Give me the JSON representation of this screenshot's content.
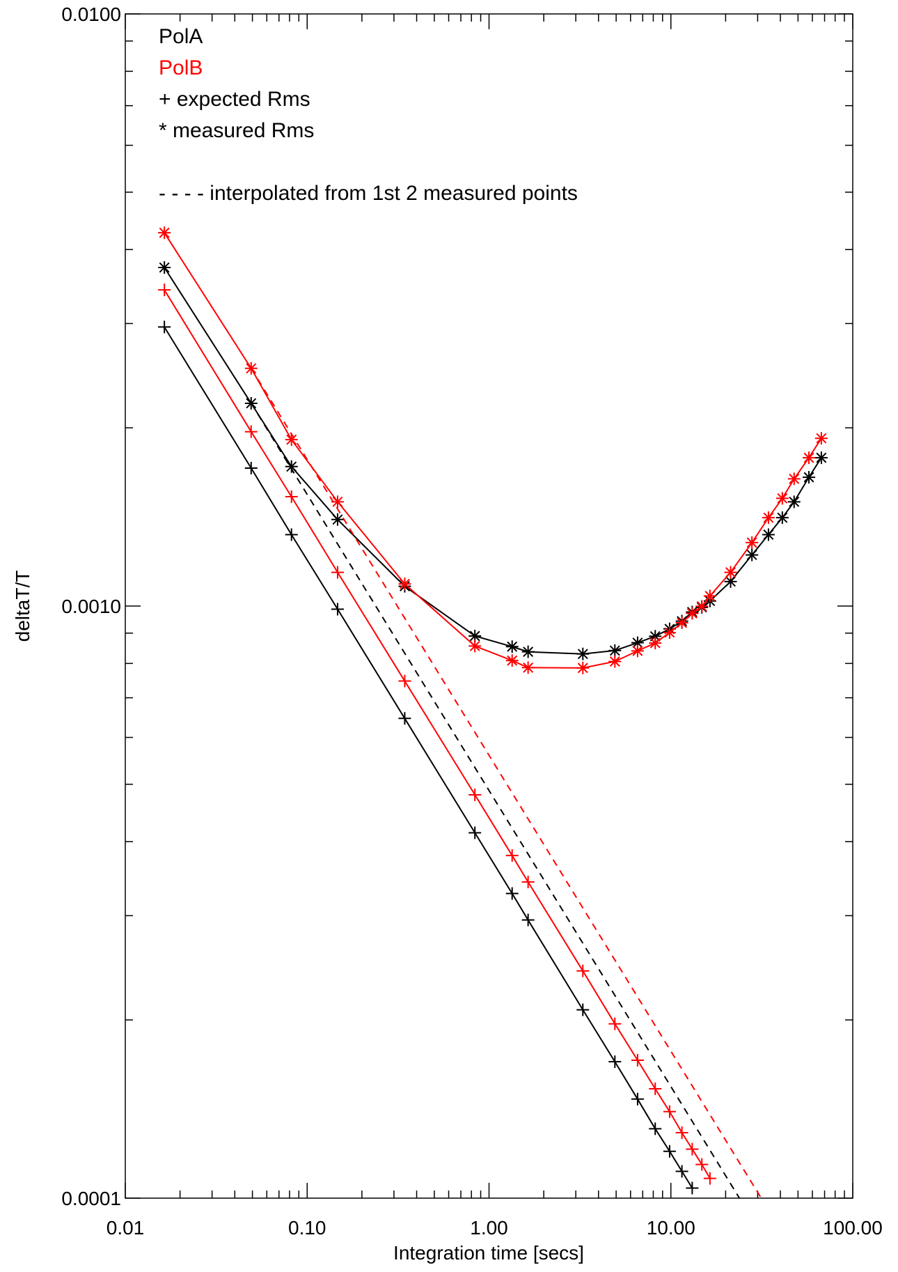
{
  "chart_data": {
    "type": "line",
    "xlabel": "Integration time [secs]",
    "ylabel": "deltaT/T",
    "x_scale": "log",
    "y_scale": "log",
    "xlim": [
      0.01,
      100.0
    ],
    "ylim": [
      0.0001,
      0.01
    ],
    "x_tick_labels": [
      {
        "value": 0.01,
        "label": "0.01"
      },
      {
        "value": 0.1,
        "label": "0.10"
      },
      {
        "value": 1.0,
        "label": "1.00"
      },
      {
        "value": 10.0,
        "label": "10.00"
      },
      {
        "value": 100.0,
        "label": "100.00"
      }
    ],
    "y_tick_labels": [
      {
        "value": 0.0001,
        "label": "0.0001"
      },
      {
        "value": 0.001,
        "label": "0.0010"
      },
      {
        "value": 0.01,
        "label": "0.0100"
      }
    ],
    "grid": false,
    "legend": {
      "placement": "top-left",
      "entries": [
        {
          "label": "PolA",
          "color": "#000000"
        },
        {
          "label": "PolB",
          "color": "#ff0000"
        },
        {
          "label": "+ expected Rms",
          "color": "#000000"
        },
        {
          "label": "* measured Rms",
          "color": "#000000"
        },
        {
          "label": "- - - - interpolated from 1st 2 measured points",
          "color": "#000000"
        }
      ]
    },
    "series": [
      {
        "name": "PolA measured Rms",
        "color": "#000000",
        "marker": "asterisk",
        "linestyle": "solid",
        "x": [
          0.0164,
          0.0492,
          0.082,
          0.147,
          0.344,
          0.836,
          1.34,
          1.64,
          3.28,
          4.92,
          6.56,
          8.2,
          9.84,
          11.5,
          13.1,
          14.8,
          16.4,
          21.3,
          27.9,
          34.4,
          41.0,
          47.6,
          57.4,
          67.2
        ],
        "y": [
          0.00373,
          0.0022,
          0.00172,
          0.0014,
          0.00108,
          0.00089,
          0.000854,
          0.000837,
          0.00083,
          0.000841,
          0.000867,
          0.000889,
          0.000915,
          0.000943,
          0.000977,
          0.000995,
          0.00102,
          0.0011,
          0.00122,
          0.00132,
          0.00141,
          0.0015,
          0.00165,
          0.00178
        ]
      },
      {
        "name": "PolB measured Rms",
        "color": "#ff0000",
        "marker": "asterisk",
        "linestyle": "solid",
        "x": [
          0.0164,
          0.0492,
          0.082,
          0.147,
          0.344,
          0.836,
          1.34,
          1.64,
          3.28,
          4.92,
          6.56,
          8.2,
          9.84,
          11.5,
          13.1,
          14.8,
          16.4,
          21.3,
          27.9,
          34.4,
          41.0,
          47.6,
          57.4,
          67.2
        ],
        "y": [
          0.00427,
          0.00252,
          0.00191,
          0.0015,
          0.00109,
          0.000856,
          0.000809,
          0.000787,
          0.000786,
          0.000806,
          0.00084,
          0.000866,
          0.000902,
          0.000937,
          0.000972,
          0.000999,
          0.00104,
          0.00114,
          0.00128,
          0.00141,
          0.00152,
          0.00164,
          0.00178,
          0.00192
        ]
      },
      {
        "name": "PolA expected Rms",
        "color": "#000000",
        "marker": "plus",
        "linestyle": "solid",
        "x": [
          0.0164,
          0.0492,
          0.082,
          0.147,
          0.344,
          0.836,
          1.34,
          1.64,
          3.28,
          4.92,
          6.56,
          8.2,
          9.84,
          11.5,
          13.1
        ],
        "y": [
          0.00296,
          0.00171,
          0.00132,
          0.000988,
          0.000646,
          0.000414,
          0.000327,
          0.000295,
          0.000208,
          0.00017,
          0.000147,
          0.000131,
          0.00012,
          0.000111,
          0.000104
        ]
      },
      {
        "name": "PolB expected Rms",
        "color": "#ff0000",
        "marker": "plus",
        "linestyle": "solid",
        "x": [
          0.0164,
          0.0492,
          0.082,
          0.147,
          0.344,
          0.836,
          1.34,
          1.64,
          3.28,
          4.92,
          6.56,
          8.2,
          9.84,
          11.5,
          13.1,
          14.8,
          16.4
        ],
        "y": [
          0.00342,
          0.00197,
          0.00153,
          0.00114,
          0.000747,
          0.00048,
          0.000379,
          0.000342,
          0.000242,
          0.000197,
          0.000171,
          0.000153,
          0.00014,
          0.000129,
          0.000121,
          0.000114,
          0.000108
        ]
      },
      {
        "name": "PolA interpolated",
        "color": "#000000",
        "marker": "none",
        "linestyle": "dashed",
        "x": [
          0.0492,
          30.0
        ],
        "y": [
          0.0022,
          8.91e-05
        ]
      },
      {
        "name": "PolB interpolated",
        "color": "#ff0000",
        "marker": "none",
        "linestyle": "dashed",
        "x": [
          0.0492,
          35.0
        ],
        "y": [
          0.00252,
          9.47e-05
        ]
      }
    ]
  }
}
